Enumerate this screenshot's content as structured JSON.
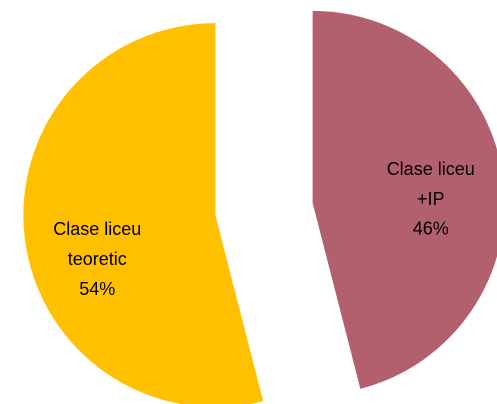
{
  "chart_data": {
    "type": "pie",
    "categories": [
      "Clase liceu +IP",
      "Clase liceu teoretic"
    ],
    "values": [
      46,
      54
    ],
    "value_labels": [
      "46%",
      "54%"
    ],
    "colors": [
      "#B3606E",
      "#FFC000"
    ]
  }
}
